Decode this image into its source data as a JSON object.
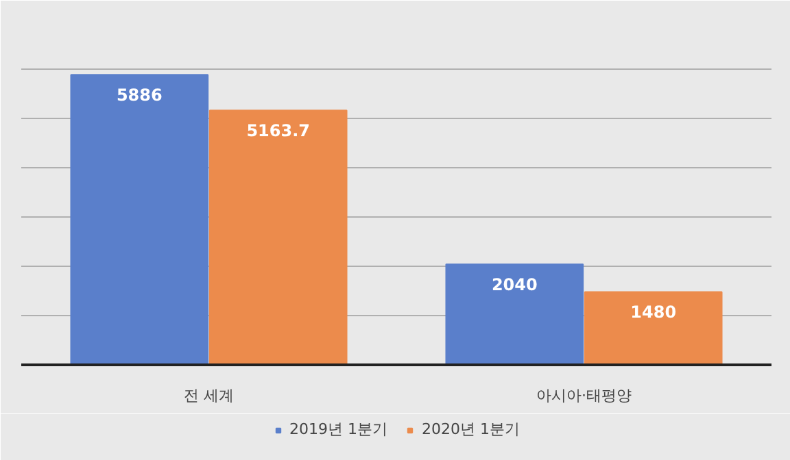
{
  "chart_data": {
    "type": "bar",
    "categories": [
      "전 세계",
      "아시아·태평양"
    ],
    "series": [
      {
        "name": "2019년 1분기",
        "color": "#5a7fcb",
        "values": [
          5886,
          2040
        ]
      },
      {
        "name": "2020년 1분기",
        "color": "#ec8b4c",
        "values": [
          5163.7,
          1480
        ]
      }
    ],
    "ylim": [
      0,
      7000
    ],
    "yticks": [
      {
        "value": 0,
        "label": null
      },
      {
        "value": 1000,
        "label": null
      },
      {
        "value": 2000,
        "label": null
      },
      {
        "value": 3000,
        "label": null
      },
      {
        "value": 4000,
        "label": null
      },
      {
        "value": 5000,
        "label": null
      },
      {
        "value": 6000,
        "label": null
      },
      {
        "value": 7000,
        "label": null
      }
    ],
    "tick_labels": "x",
    "grid": "y",
    "legend": "bottom",
    "data_labels": true
  }
}
